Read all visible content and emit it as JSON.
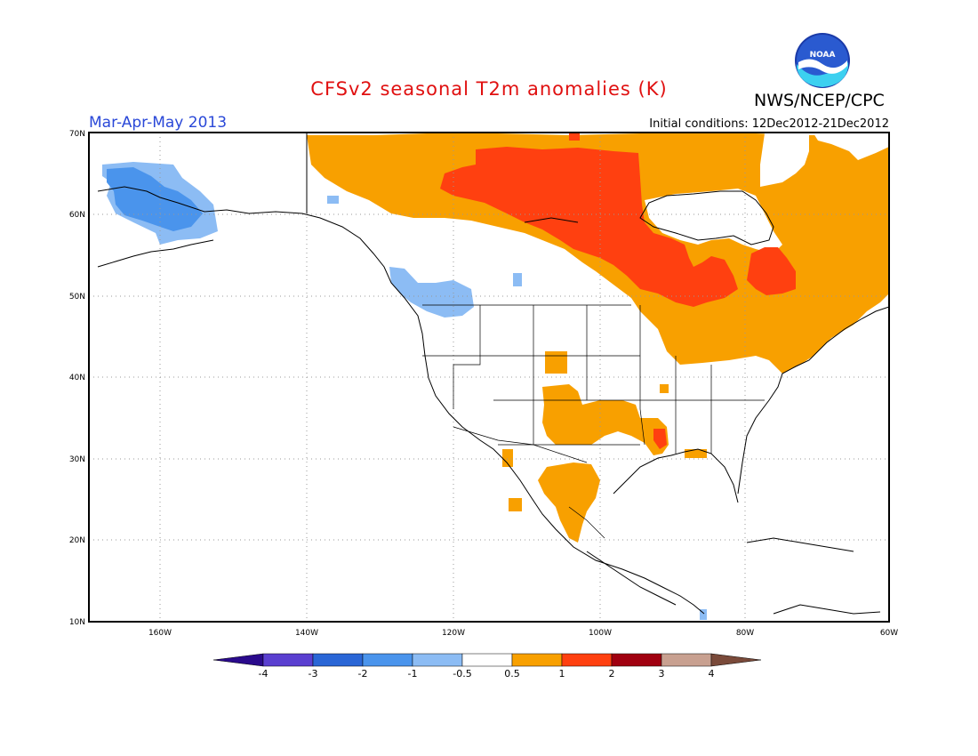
{
  "title": "CFSv2 seasonal T2m anomalies (K)",
  "org": "NWS/NCEP/CPC",
  "logo_text": "NOAA",
  "season": "Mar-Apr-May 2013",
  "initial_conditions": "Initial conditions: 12Dec2012-21Dec2012",
  "lat_labels": [
    "70N",
    "60N",
    "50N",
    "40N",
    "30N",
    "20N",
    "10N"
  ],
  "lon_labels": [
    "160W",
    "140W",
    "120W",
    "100W",
    "80W",
    "60W"
  ],
  "colorbar": {
    "labels": [
      "-4",
      "-3",
      "-2",
      "-1",
      "-0.5",
      "0.5",
      "1",
      "2",
      "3",
      "4"
    ],
    "colors": [
      "#2a0a8c",
      "#5a3fd0",
      "#2a66d6",
      "#4a94ec",
      "#8cbcf4",
      "#ffffff",
      "#f8a000",
      "#ff4010",
      "#a00010",
      "#c8a090",
      "#7a4a3a"
    ]
  },
  "colors": {
    "warm1": "#f8a000",
    "warm2": "#ff4010",
    "cool1": "#8cbcf4",
    "cool2": "#4a94ec"
  }
}
